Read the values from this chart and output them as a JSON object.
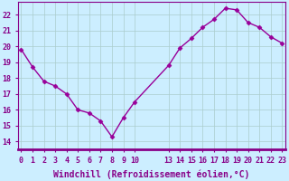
{
  "x": [
    0,
    1,
    2,
    3,
    4,
    5,
    6,
    7,
    8,
    9,
    10,
    13,
    14,
    15,
    16,
    17,
    18,
    19,
    20,
    21,
    22,
    23
  ],
  "y": [
    19.8,
    18.7,
    17.8,
    17.5,
    17.0,
    16.0,
    15.8,
    15.3,
    14.3,
    15.5,
    16.5,
    18.8,
    19.9,
    20.5,
    21.2,
    21.7,
    22.4,
    22.3,
    21.5,
    21.2,
    20.6,
    20.2
  ],
  "xticks": [
    0,
    1,
    2,
    3,
    4,
    5,
    6,
    7,
    8,
    9,
    10,
    13,
    14,
    15,
    16,
    17,
    18,
    19,
    20,
    21,
    22,
    23
  ],
  "xtick_labels": [
    "0",
    "1",
    "2",
    "3",
    "4",
    "5",
    "6",
    "7",
    "8",
    "9",
    "10",
    "13",
    "14",
    "15",
    "16",
    "17",
    "18",
    "19",
    "20",
    "21",
    "22",
    "23"
  ],
  "yticks": [
    14,
    15,
    16,
    17,
    18,
    19,
    20,
    21,
    22
  ],
  "ylim": [
    13.5,
    22.8
  ],
  "xlim": [
    -0.3,
    23.3
  ],
  "line_color": "#990099",
  "marker": "D",
  "marker_size": 2.5,
  "linewidth": 1.0,
  "bg_color": "#cceeff",
  "plot_bg": "#cceeff",
  "grid_color": "#aacccc",
  "xlabel": "Windchill (Refroidissement éolien,°C)",
  "xlabel_color": "#880088",
  "tick_color": "#880088",
  "tick_fontsize": 6,
  "xlabel_fontsize": 7,
  "spine_color": "#880088",
  "bottom_bar_color": "#880088"
}
